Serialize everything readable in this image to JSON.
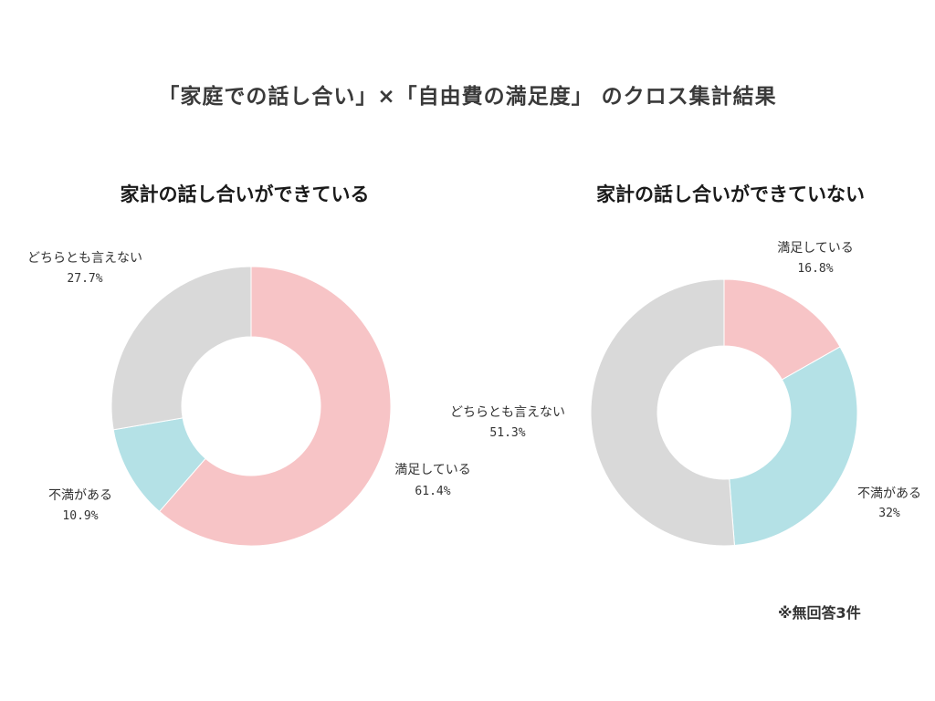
{
  "title": "「家庭での話し合い」×「自由費の満足度」 のクロス集計結果",
  "footnote": "※無回答3件",
  "colors": {
    "satisfied": "#f7c4c6",
    "dissatisfied": "#b4e1e6",
    "neutral": "#d9d9d9"
  },
  "chart_data": [
    {
      "type": "pie",
      "donut": true,
      "title": "家計の話し合いができている",
      "slices": [
        {
          "label": "満足している",
          "value": 61.4,
          "value_text": "61.4%",
          "color_key": "satisfied"
        },
        {
          "label": "不満がある",
          "value": 10.9,
          "value_text": "10.9%",
          "color_key": "dissatisfied"
        },
        {
          "label": "どちらとも言えない",
          "value": 27.7,
          "value_text": "27.7%",
          "color_key": "neutral"
        }
      ]
    },
    {
      "type": "pie",
      "donut": true,
      "title": "家計の話し合いができていない",
      "slices": [
        {
          "label": "満足している",
          "value": 16.8,
          "value_text": "16.8%",
          "color_key": "satisfied"
        },
        {
          "label": "不満がある",
          "value": 32,
          "value_text": "32%",
          "color_key": "dissatisfied"
        },
        {
          "label": "どちらとも言えない",
          "value": 51.3,
          "value_text": "51.3%",
          "color_key": "neutral"
        }
      ]
    }
  ]
}
